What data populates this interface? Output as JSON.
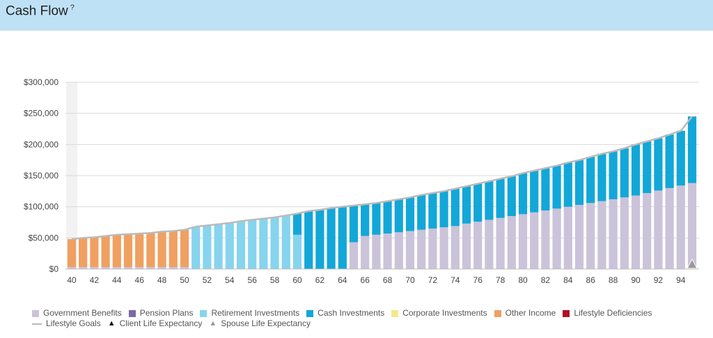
{
  "header": {
    "title": "Cash Flow",
    "help_icon": "?"
  },
  "colors": {
    "government_benefits": "#cbc3d9",
    "pension_plans": "#7a6aa8",
    "retirement_investments": "#87d4ee",
    "cash_investments": "#12a7d8",
    "corporate_investments": "#f6e98a",
    "other_income": "#f0a061",
    "lifestyle_deficiencies": "#b0102a",
    "lifestyle_goals": "#bbbbbb",
    "client_life_expectancy": "#111111",
    "spouse_life_expectancy": "#999999"
  },
  "legend": {
    "items": [
      {
        "label": "Government Benefits",
        "key": "government_benefits",
        "kind": "box"
      },
      {
        "label": "Pension Plans",
        "key": "pension_plans",
        "kind": "box"
      },
      {
        "label": "Retirement Investments",
        "key": "retirement_investments",
        "kind": "box"
      },
      {
        "label": "Cash Investments",
        "key": "cash_investments",
        "kind": "box"
      },
      {
        "label": "Corporate Investments",
        "key": "corporate_investments",
        "kind": "box"
      },
      {
        "label": "Other Income",
        "key": "other_income",
        "kind": "box"
      },
      {
        "label": "Lifestyle Deficiencies",
        "key": "lifestyle_deficiencies",
        "kind": "box"
      },
      {
        "label": "Lifestyle Goals",
        "key": "lifestyle_goals",
        "kind": "line"
      },
      {
        "label": "Client Life Expectancy",
        "key": "client_life_expectancy",
        "kind": "triangle"
      },
      {
        "label": "Spouse Life Expectancy",
        "key": "spouse_life_expectancy",
        "kind": "triangle"
      }
    ]
  },
  "chart_data": {
    "type": "bar",
    "stacked": true,
    "x_start": 40,
    "x_end": 95,
    "x_tick_labels": [
      "40",
      "42",
      "44",
      "46",
      "48",
      "50",
      "52",
      "54",
      "56",
      "58",
      "60",
      "62",
      "64",
      "66",
      "68",
      "70",
      "72",
      "74",
      "76",
      "78",
      "80",
      "82",
      "84",
      "86",
      "88",
      "90",
      "92",
      "94"
    ],
    "y_tick_labels": [
      "$0",
      "$50,000",
      "$100,000",
      "$150,000",
      "$200,000",
      "$250,000",
      "$300,000"
    ],
    "ylim": [
      0,
      300000
    ],
    "grid": true,
    "legend_position": "bottom",
    "highlight_x": 40,
    "series": [
      {
        "name": "Government Benefits",
        "key": "government_benefits",
        "values": [
          3000,
          3000,
          3000,
          3000,
          3000,
          3000,
          3000,
          3000,
          3000,
          3000,
          3000,
          0,
          0,
          0,
          0,
          0,
          0,
          0,
          0,
          0,
          0,
          0,
          0,
          0,
          0,
          43000,
          53000,
          55000,
          57000,
          59000,
          61000,
          63000,
          65000,
          67000,
          69000,
          73000,
          76000,
          79000,
          82000,
          85000,
          88000,
          91000,
          94000,
          97000,
          100000,
          103000,
          106000,
          109000,
          112000,
          115000,
          118000,
          122000,
          126000,
          130000,
          134000,
          138000
        ]
      },
      {
        "name": "Retirement Investments",
        "key": "retirement_investments",
        "values": [
          0,
          0,
          0,
          0,
          0,
          0,
          0,
          0,
          0,
          0,
          0,
          68000,
          70000,
          72000,
          74000,
          77000,
          79000,
          81000,
          83000,
          86000,
          55000,
          0,
          0,
          0,
          0,
          0,
          0,
          0,
          0,
          0,
          0,
          0,
          0,
          0,
          0,
          0,
          0,
          0,
          0,
          0,
          0,
          0,
          0,
          0,
          0,
          0,
          0,
          0,
          0,
          0,
          0,
          0,
          0,
          0,
          0,
          0
        ]
      },
      {
        "name": "Cash Investments",
        "key": "cash_investments",
        "values": [
          0,
          0,
          0,
          0,
          0,
          0,
          0,
          0,
          0,
          0,
          0,
          0,
          0,
          0,
          0,
          0,
          0,
          0,
          0,
          0,
          34000,
          93000,
          95000,
          98000,
          100000,
          59000,
          51000,
          51000,
          52000,
          53000,
          54000,
          56000,
          57000,
          58000,
          60000,
          60000,
          61000,
          62000,
          63000,
          64000,
          66000,
          67000,
          68000,
          69000,
          71000,
          72000,
          74000,
          76000,
          77000,
          79000,
          82000,
          83000,
          84000,
          86000,
          88000,
          107000
        ]
      },
      {
        "name": "Other Income",
        "key": "other_income",
        "values": [
          45000,
          47000,
          48000,
          50000,
          52000,
          53000,
          54000,
          55000,
          57000,
          58000,
          60000,
          0,
          0,
          0,
          0,
          0,
          0,
          0,
          0,
          0,
          0,
          0,
          0,
          0,
          0,
          0,
          0,
          0,
          0,
          0,
          0,
          0,
          0,
          0,
          0,
          0,
          0,
          0,
          0,
          0,
          0,
          0,
          0,
          0,
          0,
          0,
          0,
          0,
          0,
          0,
          0,
          0,
          0,
          0,
          0,
          0
        ]
      }
    ],
    "lifestyle_goals": [
      48000,
      50000,
      51000,
      53000,
      55000,
      56000,
      57000,
      58000,
      60000,
      61000,
      63000,
      68000,
      70000,
      72000,
      74000,
      77000,
      79000,
      81000,
      83000,
      86000,
      89000,
      93000,
      95000,
      98000,
      100000,
      102000,
      104000,
      106000,
      109000,
      112000,
      115000,
      119000,
      122000,
      125000,
      129000,
      133000,
      137000,
      141000,
      145000,
      149000,
      154000,
      158000,
      162000,
      166000,
      171000,
      175000,
      180000,
      185000,
      189000,
      194000,
      200000,
      205000,
      210000,
      216000,
      222000,
      245000
    ],
    "spouse_life_expectancy_x": 95
  }
}
